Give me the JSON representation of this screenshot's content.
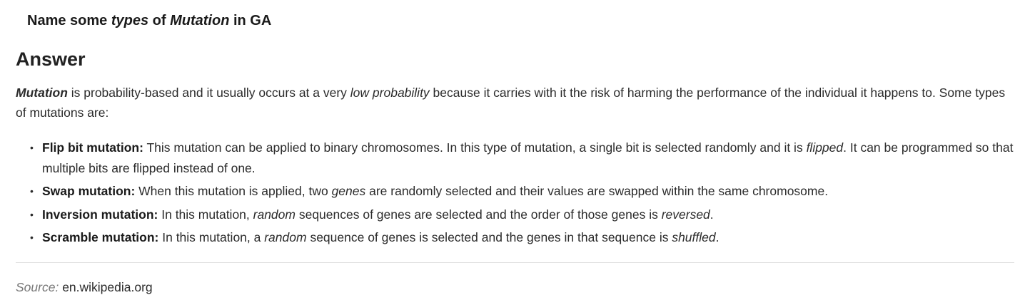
{
  "question": {
    "p1": "Name some ",
    "p2": "types",
    "p3": " of ",
    "p4": "Mutation",
    "p5": " in GA"
  },
  "answer_heading": "Answer",
  "intro": {
    "term": "Mutation",
    "p1": " is probability-based and it usually occurs at a very ",
    "em1": "low probability",
    "p2": " because it carries with it the risk of harming the performance of the individual it happens to. Some types of mutations are:"
  },
  "types": [
    {
      "name": "Flip bit mutation:",
      "t1": " This mutation can be applied to binary chromosomes. In this type of mutation, a single bit is selected randomly and it is ",
      "em": "flipped",
      "t2": ". It can be programmed so that multiple bits are flipped instead of one."
    },
    {
      "name": "Swap mutation:",
      "t1": " When this mutation is applied, two ",
      "em": "genes",
      "t2": " are randomly selected and their values are swapped within the same chromosome."
    },
    {
      "name": "Inversion mutation:",
      "t1": " In this mutation, ",
      "em": "random",
      "t2": " sequences of genes are selected and the order of those genes is ",
      "em2": "reversed",
      "t3": "."
    },
    {
      "name": "Scramble mutation:",
      "t1": " In this mutation, a ",
      "em": "random",
      "t2": " sequence of genes is selected and the genes in that sequence is ",
      "em2": "shuffled",
      "t3": "."
    }
  ],
  "bullet_glyph": "•",
  "source": {
    "label": "Source:",
    "value": "en.wikipedia.org"
  },
  "colors": {
    "heading_underline": "#e8c9de",
    "divider": "#e0e0e0",
    "source_label": "#777777"
  }
}
